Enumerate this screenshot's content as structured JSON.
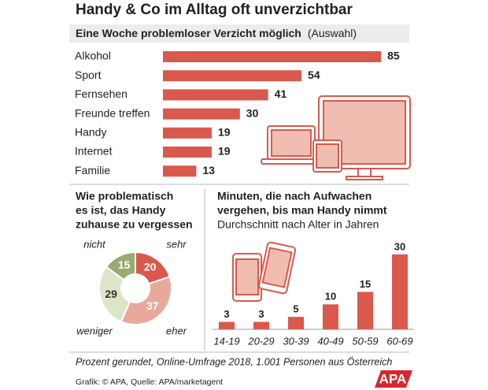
{
  "title": "Handy & Co im Alltag oft unverzichtbar",
  "chart_data": [
    {
      "type": "hbar",
      "title": "Eine Woche problemloser Verzicht möglich",
      "subtitle": "(Auswahl)",
      "categories": [
        "Alkohol",
        "Sport",
        "Fernsehen",
        "Freunde treffen",
        "Handy",
        "Internet",
        "Familie"
      ],
      "values": [
        85,
        54,
        41,
        30,
        19,
        19,
        13
      ],
      "color": "#d9594c"
    },
    {
      "type": "donut",
      "title": [
        "Wie problematisch",
        "es ist, das Handy",
        "zuhause zu vergessen"
      ],
      "categories": [
        "sehr",
        "eher",
        "weniger",
        "nicht"
      ],
      "values": [
        20,
        37,
        29,
        15
      ],
      "colors": [
        "#d9594c",
        "#e8a99c",
        "#dde5c8",
        "#9aaa72"
      ]
    },
    {
      "type": "bar",
      "title": [
        "Minuten, die nach Aufwachen",
        "vergehen, bis man Handy nimmt"
      ],
      "subtitle": "Durchschnitt nach Alter in Jahren",
      "categories": [
        "14-19",
        "20-29",
        "30-39",
        "40-49",
        "50-59",
        "60-69"
      ],
      "values": [
        3,
        3,
        5,
        10,
        15,
        30
      ],
      "color": "#d9594c"
    }
  ],
  "note": "Prozent gerundet, Online-Umfrage 2018, 1.001 Personen aus Österreich",
  "source": "Grafik: © APA, Quelle: APA/marketagent",
  "logo": "APA"
}
